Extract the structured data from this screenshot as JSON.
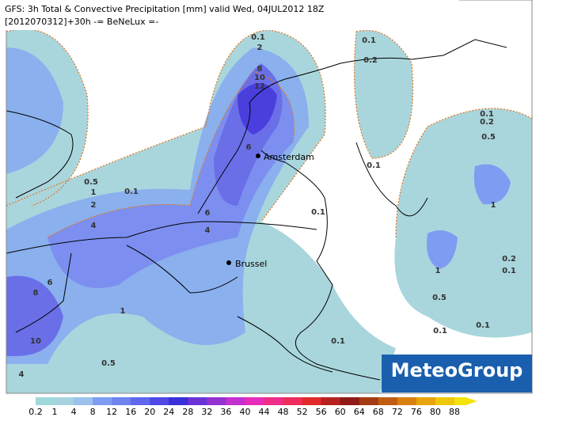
{
  "header": {
    "title": "GFS: 3h Total & Convective Precipitation [mm] valid Wed, 04JUL2012 18Z",
    "subtitle": "[2012070312]+30h -= BeNeLux =-"
  },
  "cities": [
    "Amsterdam",
    "Brussel"
  ],
  "contour_labels": [
    "0.1",
    "2",
    "8",
    "10",
    "12",
    "6",
    "0.1",
    "0.2",
    "0.1",
    "0.1",
    "0.2",
    "0.5",
    "1",
    "0.5",
    "1",
    "2",
    "0.1",
    "4",
    "6",
    "4",
    "0.1",
    "1",
    "0.2",
    "0.1",
    "0.5",
    "6",
    "8",
    "10",
    "1",
    "0.5",
    "4",
    "0.1",
    "0.1",
    "0.1"
  ],
  "logo": "MeteoGroup",
  "legend": {
    "labels": [
      "0.2",
      "1",
      "4",
      "8",
      "12",
      "16",
      "20",
      "24",
      "28",
      "32",
      "36",
      "40",
      "44",
      "48",
      "52",
      "56",
      "60",
      "64",
      "68",
      "72",
      "76",
      "80",
      "88"
    ],
    "colors": [
      "#9fd9d9",
      "#a7d3e0",
      "#9cc1ec",
      "#7e9df2",
      "#6d83f0",
      "#5f67ec",
      "#4f49e6",
      "#3a2fd8",
      "#6a33d8",
      "#9632d2",
      "#c531cf",
      "#e52fb8",
      "#ef2e8a",
      "#ee2d5c",
      "#e22a2a",
      "#b8221e",
      "#8f1a16",
      "#a33b14",
      "#c25d12",
      "#d97f10",
      "#e8a40d",
      "#f0c80a",
      "#f5e20a"
    ]
  }
}
